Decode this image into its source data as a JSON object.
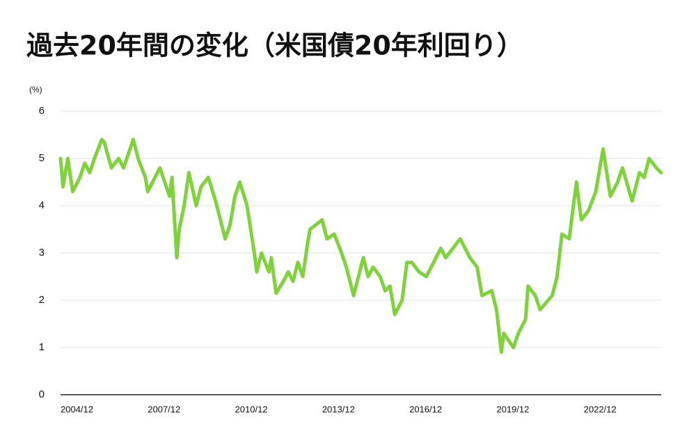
{
  "chart_data": {
    "type": "line",
    "title": "過去20年間の変化（米国債20年利回り）",
    "y_unit": "(%)",
    "color": "#7ed33a",
    "x": [
      "2004/12",
      "2005/01",
      "2005/03",
      "2005/05",
      "2005/08",
      "2005/10",
      "2005/12",
      "2006/02",
      "2006/05",
      "2006/06",
      "2006/09",
      "2006/12",
      "2007/02",
      "2007/06",
      "2007/08",
      "2007/11",
      "2007/12",
      "2008/02",
      "2008/05",
      "2008/09",
      "2008/10",
      "2008/12",
      "2009/01",
      "2009/03",
      "2009/05",
      "2009/08",
      "2009/10",
      "2010/01",
      "2010/04",
      "2010/08",
      "2010/10",
      "2010/12",
      "2011/02",
      "2011/05",
      "2011/08",
      "2011/09",
      "2011/11",
      "2012/02",
      "2012/03",
      "2012/05",
      "2012/08",
      "2012/10",
      "2012/12",
      "2013/02",
      "2013/04",
      "2013/06",
      "2013/07",
      "2013/12",
      "2014/02",
      "2014/05",
      "2014/08",
      "2014/10",
      "2015/01",
      "2015/03",
      "2015/05",
      "2015/07",
      "2015/09",
      "2015/12",
      "2016/02",
      "2016/04",
      "2016/06",
      "2016/09",
      "2016/11",
      "2017/01",
      "2017/04",
      "2017/07",
      "2017/10",
      "2018/01",
      "2018/03",
      "2018/09",
      "2019/01",
      "2019/04",
      "2019/06",
      "2019/10",
      "2019/12",
      "2020/02",
      "2020/03",
      "2020/07",
      "2020/09",
      "2020/12",
      "2021/01",
      "2021/04",
      "2021/06",
      "2021/11",
      "2022/01",
      "2022/03",
      "2022/06",
      "2022/09",
      "2022/11",
      "2023/02",
      "2023/05",
      "2023/08",
      "2023/11",
      "2024/02",
      "2024/04",
      "2024/08",
      "2024/11",
      "2025/01",
      "2025/03",
      "2025/06",
      "2025/08"
    ],
    "values": [
      5.0,
      4.4,
      5.0,
      4.3,
      4.6,
      4.9,
      4.7,
      5.0,
      5.4,
      5.35,
      4.8,
      5.0,
      4.8,
      5.4,
      5.0,
      4.6,
      4.3,
      4.5,
      4.8,
      4.2,
      4.6,
      2.9,
      3.5,
      4.0,
      4.7,
      4.0,
      4.4,
      4.6,
      4.1,
      3.3,
      3.6,
      4.2,
      4.5,
      4.0,
      3.0,
      2.6,
      3.0,
      2.6,
      2.9,
      2.15,
      2.4,
      2.6,
      2.4,
      2.8,
      2.5,
      3.2,
      3.5,
      3.7,
      3.3,
      3.4,
      3.0,
      2.7,
      2.1,
      2.5,
      2.9,
      2.5,
      2.7,
      2.5,
      2.2,
      2.3,
      1.7,
      2.0,
      2.8,
      2.8,
      2.6,
      2.5,
      2.8,
      3.1,
      2.9,
      3.3,
      2.9,
      2.7,
      2.1,
      2.2,
      1.8,
      0.9,
      1.3,
      1.0,
      1.3,
      1.6,
      2.3,
      2.1,
      1.8,
      2.1,
      2.5,
      3.4,
      3.3,
      4.5,
      3.7,
      3.9,
      4.3,
      5.2,
      4.2,
      4.5,
      4.8,
      4.1,
      4.7,
      4.6,
      5.0,
      4.8,
      4.7
    ],
    "xlim": [
      "2004/12",
      "2025/08"
    ],
    "xticks": [
      "2004/12",
      "2007/12",
      "2010/12",
      "2013/12",
      "2016/12",
      "2019/12",
      "2022/12"
    ],
    "ylim": [
      0,
      6
    ],
    "yticks": [
      0,
      1,
      2,
      3,
      4,
      5,
      6
    ],
    "grid": true
  }
}
